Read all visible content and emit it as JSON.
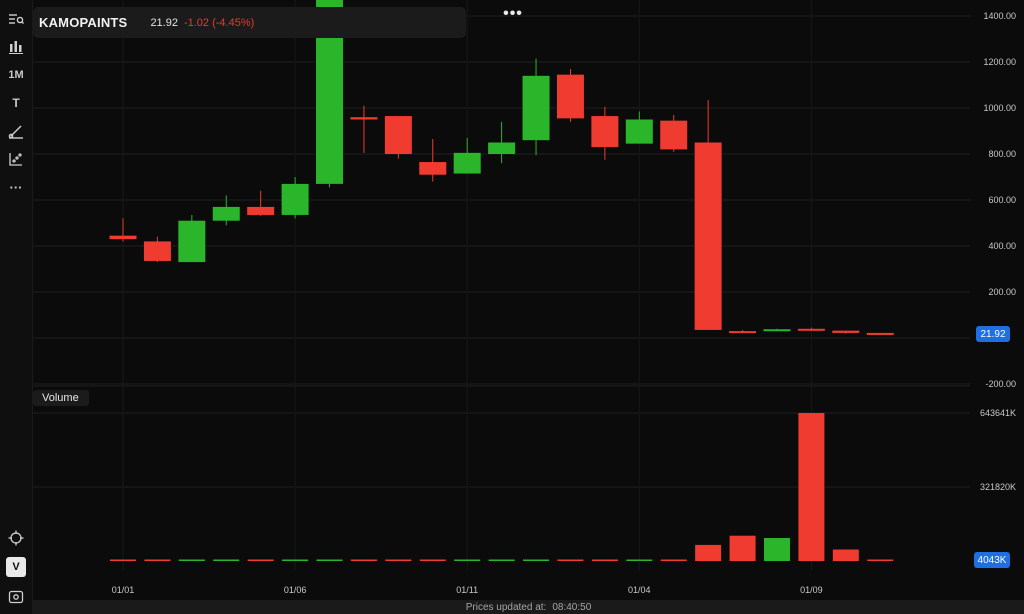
{
  "header": {
    "ticker": "KAMOPAINTS",
    "last_price": "21.92",
    "change": "-1.02 (-4.45%)",
    "change_color": "#e03c32",
    "more_icon": "more-dots-icon"
  },
  "toolbar": {
    "icons": [
      "menu-search-icon",
      "chart-type-icon",
      "crosshair-icon",
      "view-icon"
    ],
    "interval_label": "1M",
    "text_tool_label": "T",
    "v_label": "V",
    "more_tools_label": "···"
  },
  "volume_panel": {
    "title": "Volume"
  },
  "price_tags": {
    "price": "21.92",
    "volume": "4043K"
  },
  "status_bar": {
    "label": "Prices updated at:",
    "time": "08:40:50"
  },
  "colors": {
    "up": "#2ab52a",
    "down": "#ef3b30",
    "background": "#0b0b0b",
    "accent": "#1e6fe3"
  },
  "chart_data": {
    "type": "candlestick",
    "price_axis": {
      "ticks": [
        1400,
        1200,
        1000,
        800,
        600,
        400,
        200,
        -200
      ],
      "tick_labels": [
        "1400.00",
        "1200.00",
        "1000.00",
        "800.00",
        "600.00",
        "400.00",
        "200.00",
        "-200.00"
      ],
      "ylim": [
        -200,
        1450
      ]
    },
    "volume_axis": {
      "ticks": [
        643641,
        321820
      ],
      "tick_labels": [
        "643641K",
        "321820K"
      ],
      "ylim": [
        0,
        643641
      ]
    },
    "x_axis": {
      "tick_labels": [
        {
          "label": "01/01",
          "index": 0
        },
        {
          "label": "01/06",
          "index": 5
        },
        {
          "label": "01/11",
          "index": 10
        },
        {
          "label": "01/04",
          "index": 15
        },
        {
          "label": "01/09",
          "index": 20
        }
      ]
    },
    "candles": [
      {
        "open": 445,
        "high": 520,
        "low": 420,
        "close": 430,
        "volume": 3000
      },
      {
        "open": 420,
        "high": 440,
        "low": 330,
        "close": 335,
        "volume": 3000
      },
      {
        "open": 330,
        "high": 535,
        "low": 330,
        "close": 510,
        "volume": 3000
      },
      {
        "open": 510,
        "high": 620,
        "low": 490,
        "close": 570,
        "volume": 3000
      },
      {
        "open": 570,
        "high": 640,
        "low": 530,
        "close": 535,
        "volume": 3000
      },
      {
        "open": 535,
        "high": 700,
        "low": 520,
        "close": 670,
        "volume": 3000
      },
      {
        "open": 670,
        "high": 1540,
        "low": 655,
        "close": 1510,
        "volume": 6000
      },
      {
        "open": 960,
        "high": 1010,
        "low": 805,
        "close": 950,
        "volume": 3000
      },
      {
        "open": 965,
        "high": 965,
        "low": 780,
        "close": 800,
        "volume": 3000
      },
      {
        "open": 765,
        "high": 865,
        "low": 680,
        "close": 710,
        "volume": 3000
      },
      {
        "open": 715,
        "high": 870,
        "low": 715,
        "close": 805,
        "volume": 3000
      },
      {
        "open": 800,
        "high": 940,
        "low": 760,
        "close": 850,
        "volume": 3000
      },
      {
        "open": 860,
        "high": 1215,
        "low": 795,
        "close": 1140,
        "volume": 3000
      },
      {
        "open": 1145,
        "high": 1170,
        "low": 940,
        "close": 955,
        "volume": 5000
      },
      {
        "open": 965,
        "high": 1005,
        "low": 775,
        "close": 830,
        "volume": 3000
      },
      {
        "open": 845,
        "high": 985,
        "low": 845,
        "close": 950,
        "volume": 3000
      },
      {
        "open": 945,
        "high": 970,
        "low": 810,
        "close": 820,
        "volume": 3000
      },
      {
        "open": 850,
        "high": 1035,
        "low": 35,
        "close": 35,
        "volume": 70000
      },
      {
        "open": 30,
        "high": 35,
        "low": 25,
        "close": 28,
        "volume": 110000
      },
      {
        "open": 30,
        "high": 40,
        "low": 30,
        "close": 38,
        "volume": 100000
      },
      {
        "open": 40,
        "high": 45,
        "low": 30,
        "close": 32,
        "volume": 643641
      },
      {
        "open": 32,
        "high": 32,
        "low": 18,
        "close": 22,
        "volume": 50000
      },
      {
        "open": 22,
        "high": 22,
        "low": 18,
        "close": 21.92,
        "volume": 4043
      }
    ]
  }
}
